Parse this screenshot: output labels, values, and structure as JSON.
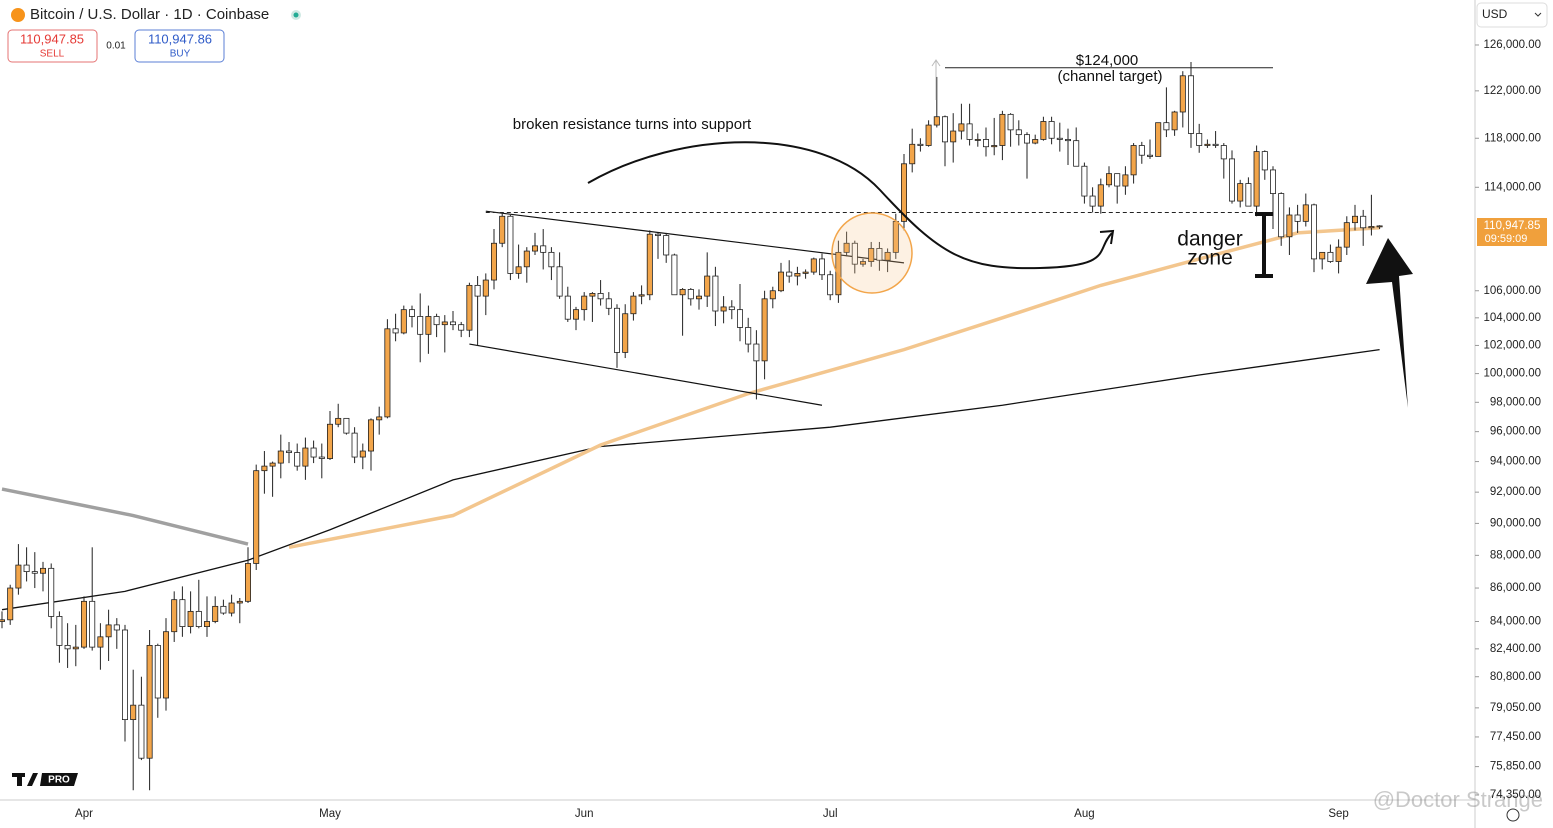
{
  "header": {
    "title": "Bitcoin / U.S. Dollar · 1D · Coinbase",
    "sell_price": "110,947.85",
    "sell_label": "SELL",
    "spread": "0.01",
    "buy_price": "110,947.86",
    "buy_label": "BUY",
    "currency": "USD"
  },
  "chart_data": {
    "type": "candlestick",
    "log_scale": true,
    "ylim": [
      74090,
      130050
    ],
    "yticks": [
      {
        "value": 126000,
        "label": "126,000.00"
      },
      {
        "value": 122000,
        "label": "122,000.00"
      },
      {
        "value": 118000,
        "label": "118,000.00"
      },
      {
        "value": 114000,
        "label": "114,000.00"
      },
      {
        "value": 106000,
        "label": "106,000.00"
      },
      {
        "value": 104000,
        "label": "104,000.00"
      },
      {
        "value": 102000,
        "label": "102,000.00"
      },
      {
        "value": 100000,
        "label": "100,000.00"
      },
      {
        "value": 98000,
        "label": "98,000.00"
      },
      {
        "value": 96000,
        "label": "96,000.00"
      },
      {
        "value": 94000,
        "label": "94,000.00"
      },
      {
        "value": 92000,
        "label": "92,000.00"
      },
      {
        "value": 90000,
        "label": "90,000.00"
      },
      {
        "value": 88000,
        "label": "88,000.00"
      },
      {
        "value": 86000,
        "label": "86,000.00"
      },
      {
        "value": 84000,
        "label": "84,000.00"
      },
      {
        "value": 82400,
        "label": "82,400.00"
      },
      {
        "value": 80800,
        "label": "80,800.00"
      },
      {
        "value": 79050,
        "label": "79,050.00"
      },
      {
        "value": 77450,
        "label": "77,450.00"
      },
      {
        "value": 75850,
        "label": "75,850.00"
      },
      {
        "value": 74350,
        "label": "74,350.00"
      }
    ],
    "categories": [
      null,
      null,
      null,
      null,
      null,
      null,
      null,
      null,
      null,
      null,
      "Apr",
      null,
      null,
      null,
      null,
      null,
      null,
      null,
      null,
      null,
      null,
      null,
      null,
      null,
      null,
      null,
      null,
      null,
      null,
      null,
      null,
      null,
      null,
      null,
      null,
      null,
      null,
      null,
      null,
      null,
      "May",
      null,
      null,
      null,
      null,
      null,
      null,
      null,
      null,
      null,
      null,
      null,
      null,
      null,
      null,
      null,
      null,
      null,
      null,
      null,
      null,
      null,
      null,
      null,
      null,
      null,
      null,
      null,
      null,
      null,
      null,
      "Jun",
      null,
      null,
      null,
      null,
      null,
      null,
      null,
      null,
      null,
      null,
      null,
      null,
      null,
      null,
      null,
      null,
      null,
      null,
      null,
      null,
      null,
      null,
      null,
      null,
      null,
      null,
      null,
      null,
      null,
      "Jul",
      null,
      null,
      null,
      null,
      null,
      null,
      null,
      null,
      null,
      null,
      null,
      null,
      null,
      null,
      null,
      null,
      null,
      null,
      null,
      null,
      null,
      null,
      null,
      null,
      null,
      null,
      null,
      null,
      null,
      null,
      "Aug",
      null,
      null,
      null,
      null,
      null,
      null,
      null,
      null,
      null,
      null,
      null,
      null,
      null,
      null,
      null,
      null,
      null,
      null,
      null,
      null,
      null,
      null,
      null,
      null,
      null,
      null,
      null,
      null,
      null,
      null,
      "Sep",
      null,
      null,
      null,
      null,
      null
    ],
    "up_color": "#f2a54a",
    "down_color": "#ffffff",
    "ohlc": [
      [
        84000,
        84600,
        83600,
        84100
      ],
      [
        84100,
        86200,
        83800,
        86000
      ],
      [
        86000,
        88700,
        85600,
        87400
      ],
      [
        87400,
        88500,
        86400,
        87000
      ],
      [
        87000,
        88200,
        86000,
        86900
      ],
      [
        86900,
        87600,
        85800,
        87200
      ],
      [
        87200,
        87500,
        83600,
        84300
      ],
      [
        84300,
        84600,
        81600,
        82600
      ],
      [
        82600,
        83900,
        81300,
        82400
      ],
      [
        82400,
        83800,
        81400,
        82500
      ],
      [
        82500,
        85500,
        82400,
        85200
      ],
      [
        85200,
        88500,
        82300,
        82500
      ],
      [
        82500,
        83900,
        81200,
        83100
      ],
      [
        83100,
        84700,
        81700,
        83800
      ],
      [
        83800,
        84200,
        82400,
        83500
      ],
      [
        83500,
        83800,
        77200,
        78400
      ],
      [
        78400,
        81200,
        74600,
        79200
      ],
      [
        79200,
        80800,
        76200,
        76300
      ],
      [
        76300,
        83500,
        74600,
        82600
      ],
      [
        82600,
        82700,
        78500,
        79600
      ],
      [
        79600,
        84200,
        78900,
        83400
      ],
      [
        83400,
        85800,
        82800,
        85300
      ],
      [
        85300,
        86100,
        83100,
        83700
      ],
      [
        83700,
        85800,
        83300,
        84600
      ],
      [
        84600,
        86500,
        83600,
        83700
      ],
      [
        83700,
        85500,
        83100,
        84000
      ],
      [
        84000,
        85500,
        83900,
        84900
      ],
      [
        84900,
        85300,
        84400,
        84500
      ],
      [
        84500,
        85600,
        84300,
        85100
      ],
      [
        85100,
        85400,
        83900,
        85200
      ],
      [
        85200,
        88500,
        85100,
        87500
      ],
      [
        87500,
        93800,
        87100,
        93400
      ],
      [
        93400,
        94700,
        91900,
        93700
      ],
      [
        93700,
        94000,
        91700,
        93900
      ],
      [
        93900,
        95800,
        92900,
        94700
      ],
      [
        94700,
        95300,
        93900,
        94600
      ],
      [
        94600,
        95200,
        93400,
        93700
      ],
      [
        93700,
        95600,
        92800,
        94900
      ],
      [
        94900,
        95400,
        93900,
        94300
      ],
      [
        94300,
        95200,
        92900,
        94200
      ],
      [
        94200,
        97400,
        94100,
        96500
      ],
      [
        96500,
        97900,
        96300,
        96900
      ],
      [
        96900,
        96900,
        95800,
        95900
      ],
      [
        95900,
        96300,
        93900,
        94300
      ],
      [
        94300,
        95200,
        93500,
        94700
      ],
      [
        94700,
        96900,
        93400,
        96800
      ],
      [
        96800,
        97700,
        95800,
        97000
      ],
      [
        97000,
        103900,
        96900,
        103200
      ],
      [
        103200,
        104300,
        102300,
        102900
      ],
      [
        102900,
        104900,
        102800,
        104600
      ],
      [
        104600,
        104900,
        103300,
        104100
      ],
      [
        104100,
        105800,
        100800,
        102800
      ],
      [
        102800,
        104900,
        101400,
        104100
      ],
      [
        104100,
        104300,
        102600,
        103500
      ],
      [
        103500,
        104200,
        101500,
        103700
      ],
      [
        103700,
        104500,
        103100,
        103500
      ],
      [
        103500,
        103700,
        102600,
        103100
      ],
      [
        103100,
        106600,
        102600,
        106400
      ],
      [
        106400,
        107100,
        102000,
        105600
      ],
      [
        105600,
        107300,
        104200,
        106800
      ],
      [
        106800,
        110700,
        106100,
        109600
      ],
      [
        109600,
        111900,
        109300,
        111700
      ],
      [
        111700,
        111800,
        106800,
        107300
      ],
      [
        107300,
        109500,
        106900,
        107800
      ],
      [
        107800,
        109300,
        106600,
        109000
      ],
      [
        109000,
        110400,
        108700,
        109400
      ],
      [
        109400,
        110700,
        107600,
        108900
      ],
      [
        108900,
        109300,
        106800,
        107800
      ],
      [
        107800,
        108900,
        105400,
        105600
      ],
      [
        105600,
        106300,
        103700,
        103900
      ],
      [
        103900,
        104800,
        103100,
        104600
      ],
      [
        104600,
        105900,
        103800,
        105600
      ],
      [
        105600,
        105900,
        103700,
        105800
      ],
      [
        105800,
        106800,
        104900,
        105400
      ],
      [
        105400,
        105900,
        104200,
        104700
      ],
      [
        104700,
        105000,
        100400,
        101500
      ],
      [
        101500,
        105000,
        101100,
        104300
      ],
      [
        104300,
        105900,
        103800,
        105600
      ],
      [
        105600,
        106400,
        105000,
        105700
      ],
      [
        105700,
        110600,
        105300,
        110300
      ],
      [
        110300,
        110400,
        108400,
        110200
      ],
      [
        110200,
        110400,
        108100,
        108700
      ],
      [
        108700,
        108800,
        105700,
        105700
      ],
      [
        105700,
        106200,
        102700,
        106100
      ],
      [
        106100,
        106200,
        104900,
        105400
      ],
      [
        105400,
        106100,
        104600,
        105600
      ],
      [
        105600,
        108900,
        104800,
        107100
      ],
      [
        107100,
        107800,
        103400,
        104500
      ],
      [
        104500,
        105600,
        103600,
        104800
      ],
      [
        104800,
        105300,
        103900,
        104600
      ],
      [
        104600,
        106500,
        102300,
        103300
      ],
      [
        103300,
        104000,
        101500,
        102100
      ],
      [
        102100,
        103100,
        98200,
        100900
      ],
      [
        100900,
        106000,
        99600,
        105400
      ],
      [
        105400,
        106300,
        104700,
        106000
      ],
      [
        106000,
        108100,
        105900,
        107400
      ],
      [
        107400,
        108300,
        106600,
        107100
      ],
      [
        107100,
        107800,
        106400,
        107300
      ],
      [
        107300,
        107600,
        106900,
        107400
      ],
      [
        107400,
        108500,
        107200,
        108400
      ],
      [
        108400,
        108800,
        106800,
        107200
      ],
      [
        107200,
        107500,
        105300,
        105700
      ],
      [
        105700,
        109800,
        105100,
        108900
      ],
      [
        108900,
        110500,
        108600,
        109600
      ],
      [
        109600,
        109800,
        107300,
        108000
      ],
      [
        108000,
        108400,
        107800,
        108200
      ],
      [
        108200,
        109700,
        107800,
        109200
      ],
      [
        109200,
        109700,
        107500,
        108300
      ],
      [
        108300,
        109200,
        107400,
        108900
      ],
      [
        108900,
        111900,
        108400,
        111300
      ],
      [
        111300,
        116700,
        110600,
        115900
      ],
      [
        115900,
        118800,
        115200,
        117500
      ],
      [
        117500,
        118000,
        116900,
        117400
      ],
      [
        117400,
        119500,
        117300,
        119100
      ],
      [
        119100,
        123200,
        118900,
        119800
      ],
      [
        119800,
        119900,
        115700,
        117700
      ],
      [
        117700,
        120100,
        116000,
        118600
      ],
      [
        118600,
        120900,
        117900,
        119200
      ],
      [
        119200,
        120900,
        117400,
        117900
      ],
      [
        117900,
        118400,
        117300,
        117900
      ],
      [
        117900,
        118900,
        116500,
        117300
      ],
      [
        117300,
        119700,
        116600,
        117400
      ],
      [
        117400,
        120300,
        116200,
        120000
      ],
      [
        120000,
        120100,
        117300,
        118700
      ],
      [
        118700,
        119500,
        117400,
        118300
      ],
      [
        118300,
        118500,
        114700,
        117600
      ],
      [
        117600,
        118300,
        117500,
        117900
      ],
      [
        117900,
        119800,
        117800,
        119400
      ],
      [
        119400,
        119800,
        117500,
        118000
      ],
      [
        118000,
        119300,
        116900,
        117900
      ],
      [
        117900,
        118800,
        115800,
        117800
      ],
      [
        117800,
        118900,
        115700,
        115700
      ],
      [
        115700,
        116000,
        112700,
        113300
      ],
      [
        113300,
        114000,
        112000,
        112500
      ],
      [
        112500,
        114700,
        111900,
        114200
      ],
      [
        114200,
        115700,
        114000,
        115100
      ],
      [
        115100,
        115100,
        112700,
        114100
      ],
      [
        114100,
        115700,
        113400,
        115000
      ],
      [
        115000,
        117600,
        114300,
        117400
      ],
      [
        117400,
        117700,
        115900,
        116600
      ],
      [
        116600,
        117900,
        116300,
        116500
      ],
      [
        116500,
        119300,
        116500,
        119300
      ],
      [
        119300,
        122300,
        118100,
        118700
      ],
      [
        118700,
        120300,
        118200,
        120200
      ],
      [
        120200,
        123700,
        118900,
        123300
      ],
      [
        123300,
        124500,
        117200,
        118400
      ],
      [
        118400,
        119200,
        116800,
        117400
      ],
      [
        117400,
        117900,
        117200,
        117500
      ],
      [
        117500,
        118600,
        117200,
        117400
      ],
      [
        117400,
        117600,
        114700,
        116300
      ],
      [
        116300,
        117000,
        112700,
        112900
      ],
      [
        112900,
        114600,
        112400,
        114300
      ],
      [
        114300,
        114800,
        112600,
        112500
      ],
      [
        112500,
        117400,
        111700,
        116900
      ],
      [
        116900,
        117000,
        114600,
        115400
      ],
      [
        115400,
        115700,
        110700,
        113500
      ],
      [
        113500,
        113600,
        109400,
        110100
      ],
      [
        110100,
        112400,
        108700,
        111800
      ],
      [
        111800,
        112600,
        110400,
        111300
      ],
      [
        111300,
        113500,
        110900,
        112600
      ],
      [
        112600,
        112700,
        107400,
        108400
      ],
      [
        108400,
        108900,
        107600,
        108900
      ],
      [
        108900,
        109500,
        108100,
        108200
      ],
      [
        108200,
        109900,
        107300,
        109300
      ],
      [
        109300,
        111700,
        108700,
        111200
      ],
      [
        111200,
        112600,
        110600,
        111700
      ],
      [
        111700,
        112200,
        109400,
        110800
      ],
      [
        110800,
        113400,
        110200,
        110900
      ],
      [
        110900,
        111000,
        110700,
        110947.85
      ]
    ],
    "overlays": [
      {
        "color": "#111111",
        "x": [
          0,
          15,
          30,
          40,
          55,
          73,
          101,
          122,
          146,
          168
        ],
        "values": [
          84700,
          85800,
          87700,
          89600,
          92800,
          95000,
          96300,
          97800,
          99900,
          101700
        ]
      },
      {
        "color": "#f3c68e",
        "x": [
          35,
          55,
          73,
          91,
          110,
          122,
          134,
          146,
          158,
          168
        ],
        "values": [
          88500,
          90500,
          95100,
          98600,
          101700,
          104000,
          106400,
          108400,
          110400,
          110800
        ]
      },
      {
        "color": "#a0a0a0",
        "x": [
          0,
          16,
          30
        ],
        "values": [
          92200,
          90500,
          88700
        ]
      }
    ],
    "trendlines": [
      {
        "x": [
          59,
          110
        ],
        "values": [
          112100,
          108100
        ]
      },
      {
        "x": [
          57,
          100
        ],
        "values": [
          102100,
          97800
        ]
      }
    ],
    "support_level": {
      "x": [
        59,
        155
      ],
      "value": 112000
    },
    "target_level": {
      "x": [
        115,
        155
      ],
      "value": 124000
    },
    "price_label": "110,947.85",
    "countdown": "09:59:09",
    "annotations": {
      "support": "broken resistance turns into support",
      "target_price": "$124,000",
      "target_note": "(channel target)",
      "danger_1": "danger",
      "danger_2": "zone"
    }
  },
  "branding": {
    "badge": "PRO",
    "watermark": "@Doctor Strange"
  }
}
